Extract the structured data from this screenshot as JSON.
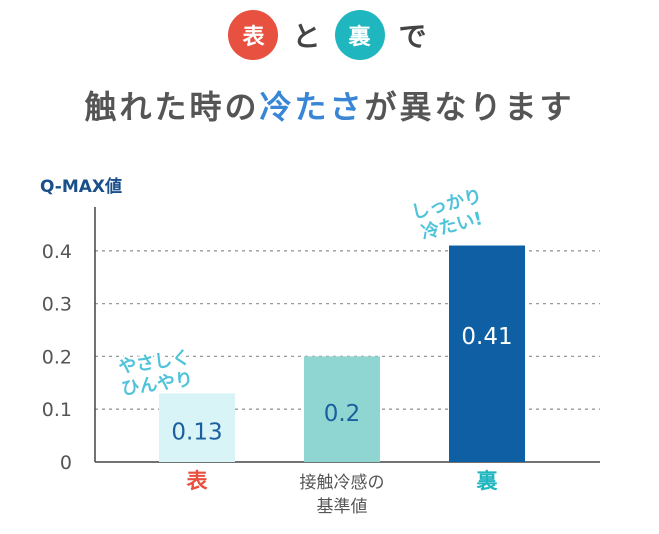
{
  "header": {
    "front_label": "表",
    "conj": "と",
    "back_label": "裏",
    "suffix": "で",
    "headline_pre": "触れた時の",
    "headline_highlight": "冷たさ",
    "headline_post": "が異なります"
  },
  "colors": {
    "front": "#e8503f",
    "back": "#20b6c0",
    "bar_front": "#d8f4f6",
    "bar_standard": "#8fd6d2",
    "bar_back": "#0e5fa3",
    "label_gray": "#555555"
  },
  "chart_data": {
    "type": "bar",
    "ylabel": "Q-MAX値",
    "ylim": [
      0,
      0.5
    ],
    "yticks": [
      "0",
      "0.1",
      "0.2",
      "0.3",
      "0.4"
    ],
    "grid": "dashed",
    "categories": [
      {
        "label": "表",
        "label_lines": [
          "表"
        ],
        "value": 0.13,
        "value_label": "0.13"
      },
      {
        "label": "接触冷感の基準値",
        "label_lines": [
          "接触冷感の",
          "基準値"
        ],
        "value": 0.2,
        "value_label": "0.2"
      },
      {
        "label": "裏",
        "label_lines": [
          "裏"
        ],
        "value": 0.41,
        "value_label": "0.41"
      }
    ],
    "annotations": [
      {
        "bar": 0,
        "lines": [
          "やさしく",
          "ひんやり"
        ]
      },
      {
        "bar": 2,
        "lines": [
          "しっかり",
          "冷たい!"
        ]
      }
    ]
  }
}
